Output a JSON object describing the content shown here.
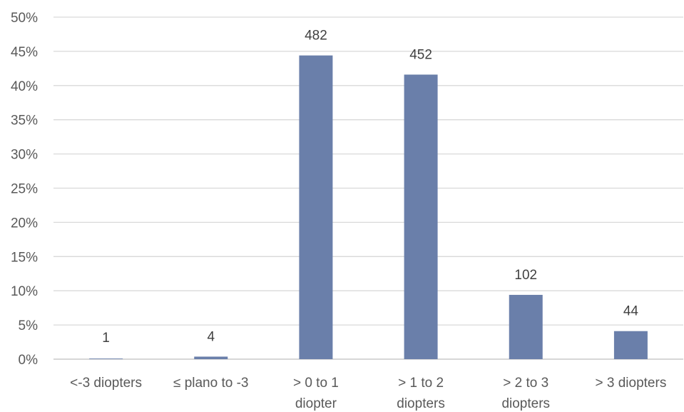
{
  "chart_data": {
    "type": "bar",
    "categories": [
      [
        "<-3 diopters"
      ],
      [
        "≤ plano to -3"
      ],
      [
        "> 0 to 1",
        "diopter"
      ],
      [
        "> 1 to 2",
        "diopters"
      ],
      [
        "> 2 to 3",
        "diopters"
      ],
      [
        "> 3 diopters"
      ]
    ],
    "values": [
      0.09,
      0.37,
      44.4,
      41.6,
      9.4,
      4.1
    ],
    "data_labels": [
      "1",
      "4",
      "482",
      "452",
      "102",
      "44"
    ],
    "ylim": [
      0,
      50
    ],
    "y_ticks": [
      "0%",
      "5%",
      "10%",
      "15%",
      "20%",
      "25%",
      "30%",
      "35%",
      "40%",
      "45%",
      "50%"
    ],
    "bar_color": "#6a7faa",
    "grid": true,
    "legend": "none"
  }
}
